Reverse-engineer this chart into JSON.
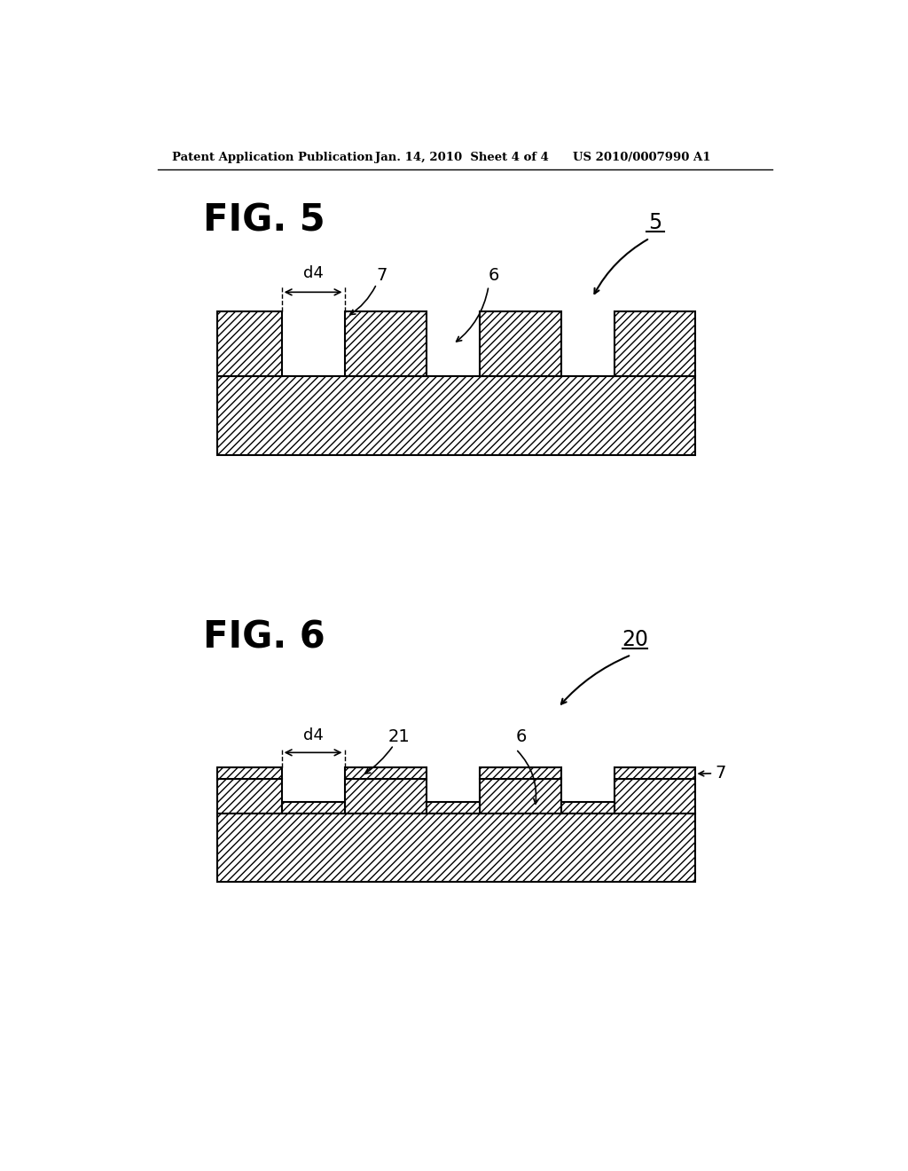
{
  "background_color": "#ffffff",
  "header_left": "Patent Application Publication",
  "header_center": "Jan. 14, 2010  Sheet 4 of 4",
  "header_right": "US 2010/0007990 A1",
  "fig5_label": "FIG. 5",
  "fig6_label": "FIG. 6",
  "fig5_ref": "5",
  "fig6_ref": "20",
  "fig5_label7": "7",
  "fig5_label6": "6",
  "fig6_label21": "21",
  "fig6_label6": "6",
  "fig6_label7": "7",
  "d4_label": "d4"
}
